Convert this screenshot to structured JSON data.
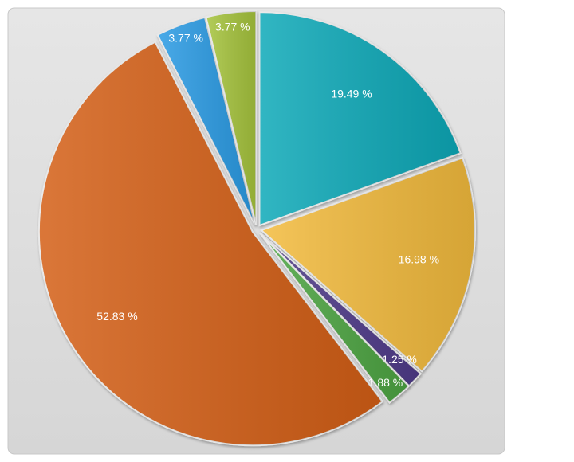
{
  "chart_data": {
    "type": "pie",
    "values": [
      19.49,
      16.98,
      1.25,
      1.88,
      52.83,
      3.77,
      3.77
    ],
    "value_labels": [
      "19.49 %",
      "16.98 %",
      "1.25 %",
      "1.88 %",
      "52.83 %",
      "3.77 %",
      "3.77 %"
    ],
    "colors": [
      "#0ea9b8",
      "#f3bb3e",
      "#4f3a8a",
      "#4ea543",
      "#d45f12",
      "#2c9be4",
      "#a6c43c"
    ]
  }
}
